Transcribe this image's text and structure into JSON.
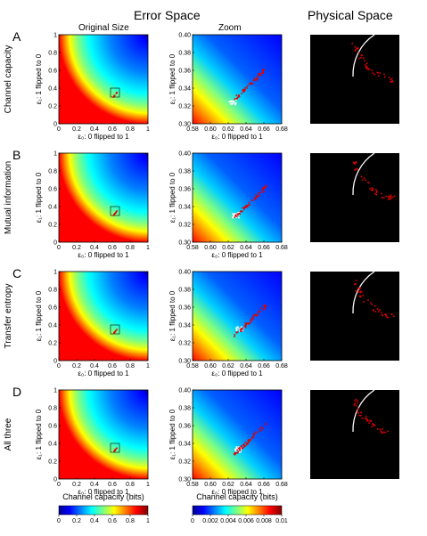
{
  "headers": {
    "error_space": "Error Space",
    "physical_space": "Physical Space",
    "original_size": "Original Size",
    "zoom": "Zoom"
  },
  "colors": {
    "jet": [
      "#00008f",
      "#0000ff",
      "#0080ff",
      "#00ffff",
      "#80ff80",
      "#ffff00",
      "#ff8000",
      "#ff0000",
      "#800000"
    ],
    "marker_red": "#e00000",
    "marker_white": "#ffffff",
    "physical_bg": "#000000"
  },
  "chart_data": {
    "type": "heatmap",
    "rows": [
      {
        "letter": "A",
        "ylabel_side": "Channel capacity"
      },
      {
        "letter": "B",
        "ylabel_side": "Mutual information"
      },
      {
        "letter": "C",
        "ylabel_side": "Transfer entropy"
      },
      {
        "letter": "D",
        "ylabel_side": "All three"
      }
    ],
    "xlabel": "ε₀: 0 flipped to 1",
    "ylabel": "ε₁: 1 flipped to 0",
    "original": {
      "xlim": [
        0,
        1
      ],
      "ylim": [
        0,
        1
      ],
      "xticks": [
        "0",
        "0.2",
        "0.4",
        "0.6",
        "0.8",
        "1"
      ],
      "yticks": [
        "0",
        "0.2",
        "0.4",
        "0.6",
        "0.8",
        "1"
      ]
    },
    "zoom": {
      "xlim": [
        0.58,
        0.68
      ],
      "ylim": [
        0.3,
        0.4
      ],
      "xticks": [
        "0.58",
        "0.60",
        "0.62",
        "0.64",
        "0.66",
        "0.68"
      ],
      "yticks": [
        "0.30",
        "0.32",
        "0.34",
        "0.36",
        "0.38",
        "0.40"
      ]
    },
    "colorbars": [
      {
        "label": "Channel capacity (bits)",
        "ticks": [
          "0",
          "0.2",
          "0.4",
          "0.6",
          "0.8",
          "1"
        ],
        "range": [
          0,
          1
        ]
      },
      {
        "label": "Channel capacity (bits)",
        "ticks": [
          "0",
          "0.002",
          "0.004",
          "0.006",
          "0.008",
          "0.01"
        ],
        "range": [
          0,
          0.01
        ]
      }
    ]
  }
}
